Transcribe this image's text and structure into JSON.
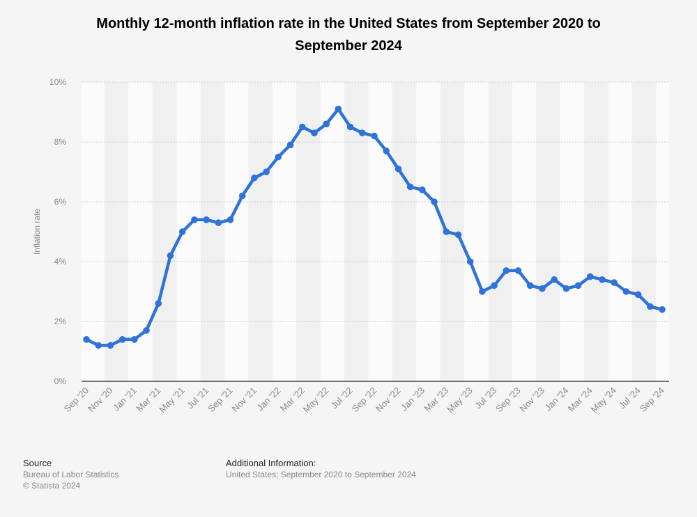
{
  "title": "Monthly 12-month inflation rate in the United States from September 2020 to September 2024",
  "footer": {
    "source_heading": "Source",
    "source_line1": "Bureau of Labor Statistics",
    "source_line2": "© Statista 2024",
    "info_heading": "Additional Information:",
    "info_line1": "United States; September 2020 to September 2024"
  },
  "chart_data": {
    "type": "line",
    "title": "Monthly 12-month inflation rate in the United States from September 2020 to September 2024",
    "xlabel": "",
    "ylabel": "Inflation rate",
    "ylim": [
      0,
      10
    ],
    "y_ticks": [
      "0%",
      "2%",
      "4%",
      "6%",
      "8%",
      "10%"
    ],
    "grid": true,
    "legend": "none",
    "color": "#2f72d9",
    "x": [
      "Sep '20",
      "Oct '20",
      "Nov '20",
      "Dec '20",
      "Jan '21",
      "Feb '21",
      "Mar '21",
      "Apr '21",
      "May '21",
      "Jun '21",
      "Jul '21",
      "Aug '21",
      "Sep '21",
      "Oct '21",
      "Nov '21",
      "Dec '21",
      "Jan '22",
      "Feb '22",
      "Mar '22",
      "Apr '22",
      "May '22",
      "Jun '22",
      "Jul '22",
      "Aug '22",
      "Sep '22",
      "Oct '22",
      "Nov '22",
      "Dec '22",
      "Jan '23",
      "Feb '23",
      "Mar '23",
      "Apr '23",
      "May '23",
      "Jun '23",
      "Jul '23",
      "Aug '23",
      "Sep '23",
      "Oct '23",
      "Nov '23",
      "Dec '23",
      "Jan '24",
      "Feb '24",
      "Mar '24",
      "Apr '24",
      "May '24",
      "Jun '24",
      "Jul '24",
      "Aug '24",
      "Sep '24"
    ],
    "x_tick_labels": [
      "Sep '20",
      "Nov '20",
      "Jan '21",
      "Mar '21",
      "May '21",
      "Jul '21",
      "Sep '21",
      "Nov '21",
      "Jan '22",
      "Mar '22",
      "May '22",
      "Jul '22",
      "Sep '22",
      "Nov '22",
      "Jan '23",
      "Mar '23",
      "May '23",
      "Jul '23",
      "Sep '23",
      "Nov '23",
      "Jan '24",
      "Mar '24",
      "May '24",
      "Jul '24",
      "Sep '24"
    ],
    "series": [
      {
        "values": [
          1.4,
          1.2,
          1.2,
          1.4,
          1.4,
          1.7,
          2.6,
          4.2,
          5.0,
          5.4,
          5.4,
          5.3,
          5.4,
          6.2,
          6.8,
          7.0,
          7.5,
          7.9,
          8.5,
          8.3,
          8.6,
          9.1,
          8.5,
          8.3,
          8.2,
          7.7,
          7.1,
          6.5,
          6.4,
          6.0,
          5.0,
          4.9,
          4.0,
          3.0,
          3.2,
          3.7,
          3.7,
          3.2,
          3.1,
          3.4,
          3.1,
          3.2,
          3.5,
          3.4,
          3.3,
          3.0,
          2.9,
          2.5,
          2.4
        ]
      }
    ]
  }
}
